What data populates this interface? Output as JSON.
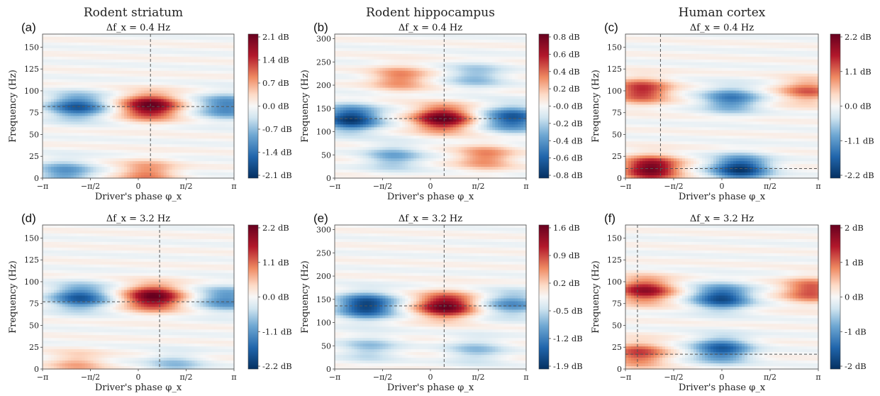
{
  "columns": [
    "Rodent striatum",
    "Rodent hippocampus",
    "Human cortex"
  ],
  "colors": {
    "negative": "#053061",
    "zero": "#f7f7f7",
    "positive": "#67001f"
  },
  "chart_data": [
    {
      "type": "heatmap",
      "label": "(a)",
      "subtitle": "Δf_x = 0.4 Hz",
      "title_display": "Δ f_x = 0.4 Hz",
      "xlabel": "Driver's phase φ_x",
      "ylabel": "Frequency (Hz)",
      "xlim": [
        -3.1416,
        3.1416
      ],
      "ylim": [
        0,
        165
      ],
      "xticks": [
        "−π",
        "−π/2",
        "0",
        "π/2",
        "π"
      ],
      "yticks": [
        0,
        25,
        50,
        75,
        100,
        125,
        150
      ],
      "colorbar_ticks": [
        "2.1 dB",
        "1.4 dB",
        "0.7 dB",
        "0.0 dB",
        "-0.7 dB",
        "-1.4 dB",
        "-2.1 dB"
      ],
      "vmin": -2.1,
      "vmax": 2.1,
      "peak_phase": 0.4,
      "peak_freq": 82,
      "features": [
        {
          "x": 0.4,
          "y": 82,
          "amp": 1.0
        },
        {
          "x": -2.0,
          "y": 82,
          "amp": -0.75
        },
        {
          "x": 2.9,
          "y": 82,
          "amp": -0.6
        },
        {
          "x": 0.3,
          "y": 6,
          "amp": 0.45
        },
        {
          "x": -2.4,
          "y": 6,
          "amp": -0.5
        }
      ]
    },
    {
      "type": "heatmap",
      "label": "(b)",
      "subtitle": "Δf_x = 0.4 Hz",
      "xlabel": "Driver's phase φ_x",
      "ylabel": "Frequency (Hz)",
      "xlim": [
        -3.1416,
        3.1416
      ],
      "ylim": [
        0,
        310
      ],
      "xticks": [
        "−π",
        "−π/2",
        "0",
        "π/2",
        "π"
      ],
      "yticks": [
        0,
        50,
        100,
        150,
        200,
        250,
        300
      ],
      "colorbar_ticks": [
        "0.8 dB",
        "0.6 dB",
        "0.4 dB",
        "0.2 dB",
        "-0.0 dB",
        "-0.2 dB",
        "-0.4 dB",
        "-0.6 dB",
        "-0.8 dB"
      ],
      "vmin": -0.8,
      "vmax": 0.8,
      "peak_phase": 0.45,
      "peak_freq": 128,
      "features": [
        {
          "x": 0.4,
          "y": 128,
          "amp": 1.0
        },
        {
          "x": -2.6,
          "y": 128,
          "amp": -0.95
        },
        {
          "x": 2.7,
          "y": 128,
          "amp": -0.8
        },
        {
          "x": -1.0,
          "y": 215,
          "amp": 0.45
        },
        {
          "x": 1.8,
          "y": 45,
          "amp": 0.45
        },
        {
          "x": -1.2,
          "y": 45,
          "amp": -0.4
        },
        {
          "x": 1.5,
          "y": 220,
          "amp": -0.35
        }
      ]
    },
    {
      "type": "heatmap",
      "label": "(c)",
      "subtitle": "Δf_x = 0.4 Hz",
      "xlabel": "Driver's phase φ_x",
      "ylabel": "Frequency (Hz)",
      "xlim": [
        -3.1416,
        3.1416
      ],
      "ylim": [
        0,
        165
      ],
      "xticks": [
        "−π",
        "−π/2",
        "0",
        "π/2",
        "π"
      ],
      "yticks": [
        0,
        25,
        50,
        75,
        100,
        125,
        150
      ],
      "colorbar_ticks": [
        "2.2 dB",
        "1.1 dB",
        "0.0 dB",
        "-1.1 dB",
        "-2.2 dB"
      ],
      "vmin": -2.2,
      "vmax": 2.2,
      "peak_phase": -2.0,
      "peak_freq": 11,
      "features": [
        {
          "x": -2.3,
          "y": 11,
          "amp": 1.0
        },
        {
          "x": -2.6,
          "y": 100,
          "amp": 0.7
        },
        {
          "x": 0.6,
          "y": 11,
          "amp": -0.95
        },
        {
          "x": 0.3,
          "y": 90,
          "amp": -0.6
        },
        {
          "x": 2.8,
          "y": 100,
          "amp": 0.5
        }
      ]
    },
    {
      "type": "heatmap",
      "label": "(d)",
      "subtitle": "Δf_x = 3.2 Hz",
      "xlabel": "Driver's phase φ_x",
      "ylabel": "Frequency (Hz)",
      "xlim": [
        -3.1416,
        3.1416
      ],
      "ylim": [
        0,
        165
      ],
      "xticks": [
        "−π",
        "−π/2",
        "0",
        "π/2",
        "π"
      ],
      "yticks": [
        0,
        25,
        50,
        75,
        100,
        125,
        150
      ],
      "colorbar_ticks": [
        "2.2 dB",
        "1.1 dB",
        "0.0 dB",
        "-1.1 dB",
        "-2.2 dB"
      ],
      "vmin": -2.2,
      "vmax": 2.2,
      "peak_phase": 0.7,
      "peak_freq": 77,
      "features": [
        {
          "x": 0.5,
          "y": 82,
          "amp": 1.0
        },
        {
          "x": -1.9,
          "y": 82,
          "amp": -0.75
        },
        {
          "x": 2.9,
          "y": 80,
          "amp": -0.55
        },
        {
          "x": -2.0,
          "y": 6,
          "amp": 0.3
        },
        {
          "x": 1.2,
          "y": 4,
          "amp": -0.3
        }
      ]
    },
    {
      "type": "heatmap",
      "label": "(e)",
      "subtitle": "Δf_x = 3.2 Hz",
      "xlabel": "Driver's phase φ_x",
      "ylabel": "Frequency (Hz)",
      "xlim": [
        -3.1416,
        3.1416
      ],
      "ylim": [
        0,
        310
      ],
      "xticks": [
        "−π",
        "−π/2",
        "0",
        "π/2",
        "π"
      ],
      "yticks": [
        0,
        50,
        100,
        150,
        200,
        250,
        300
      ],
      "colorbar_ticks": [
        "1.6 dB",
        "0.9 dB",
        "0.2 dB",
        "-0.5 dB",
        "-1.2 dB",
        "-1.9 dB"
      ],
      "vmin": -1.9,
      "vmax": 1.9,
      "peak_phase": 0.45,
      "peak_freq": 136,
      "features": [
        {
          "x": 0.5,
          "y": 136,
          "amp": 1.0
        },
        {
          "x": -2.1,
          "y": 136,
          "amp": -0.95
        },
        {
          "x": 2.7,
          "y": 140,
          "amp": -0.5
        },
        {
          "x": -2.0,
          "y": 45,
          "amp": -0.3
        },
        {
          "x": 1.5,
          "y": 40,
          "amp": -0.3
        }
      ]
    },
    {
      "type": "heatmap",
      "label": "(f)",
      "subtitle": "Δf_x = 3.2 Hz",
      "xlabel": "Driver's phase φ_x",
      "ylabel": "Frequency (Hz)",
      "xlim": [
        -3.1416,
        3.1416
      ],
      "ylim": [
        0,
        165
      ],
      "xticks": [
        "−π",
        "−π/2",
        "0",
        "π/2",
        "π"
      ],
      "yticks": [
        0,
        25,
        50,
        75,
        100,
        125,
        150
      ],
      "colorbar_ticks": [
        "2 dB",
        "1 dB",
        "0 dB",
        "-1 dB",
        "-2 dB"
      ],
      "vmin": -2.5,
      "vmax": 2.5,
      "peak_phase": -2.75,
      "peak_freq": 17,
      "features": [
        {
          "x": -2.5,
          "y": 90,
          "amp": 0.8
        },
        {
          "x": -2.7,
          "y": 17,
          "amp": 0.6
        },
        {
          "x": 0.0,
          "y": 82,
          "amp": -0.85
        },
        {
          "x": 0.0,
          "y": 22,
          "amp": -0.75
        },
        {
          "x": 2.9,
          "y": 90,
          "amp": 0.6
        }
      ]
    }
  ]
}
